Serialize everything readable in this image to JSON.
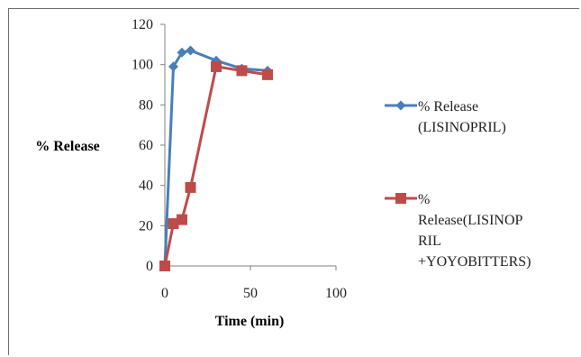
{
  "chart_data": {
    "type": "line",
    "title": "",
    "xlabel": "Time (min)",
    "ylabel": "% Release",
    "xlim": [
      0,
      100
    ],
    "ylim": [
      0,
      120
    ],
    "xticks": [
      0,
      50,
      100
    ],
    "yticks": [
      0,
      20,
      40,
      60,
      80,
      100,
      120
    ],
    "grid": false,
    "legend_position": "right",
    "series": [
      {
        "name": "% Release (LISINOPRIL)",
        "legend_lines": [
          "% Release",
          "(LISINOPRIL)"
        ],
        "color": "#4a7ebb",
        "marker": "diamond",
        "x": [
          0,
          5,
          10,
          15,
          30,
          45,
          60
        ],
        "y": [
          0,
          99,
          106,
          107,
          102,
          98,
          97
        ]
      },
      {
        "name": "% Release(LISINOPRIL +YOYOBITTERS)",
        "legend_lines": [
          "%",
          "Release(LISINOP",
          "RIL",
          "+YOYOBITTERS)"
        ],
        "color": "#be4b48",
        "marker": "square",
        "x": [
          0,
          5,
          10,
          15,
          30,
          45,
          60
        ],
        "y": [
          0,
          21,
          23,
          39,
          99,
          97,
          95
        ]
      }
    ]
  }
}
